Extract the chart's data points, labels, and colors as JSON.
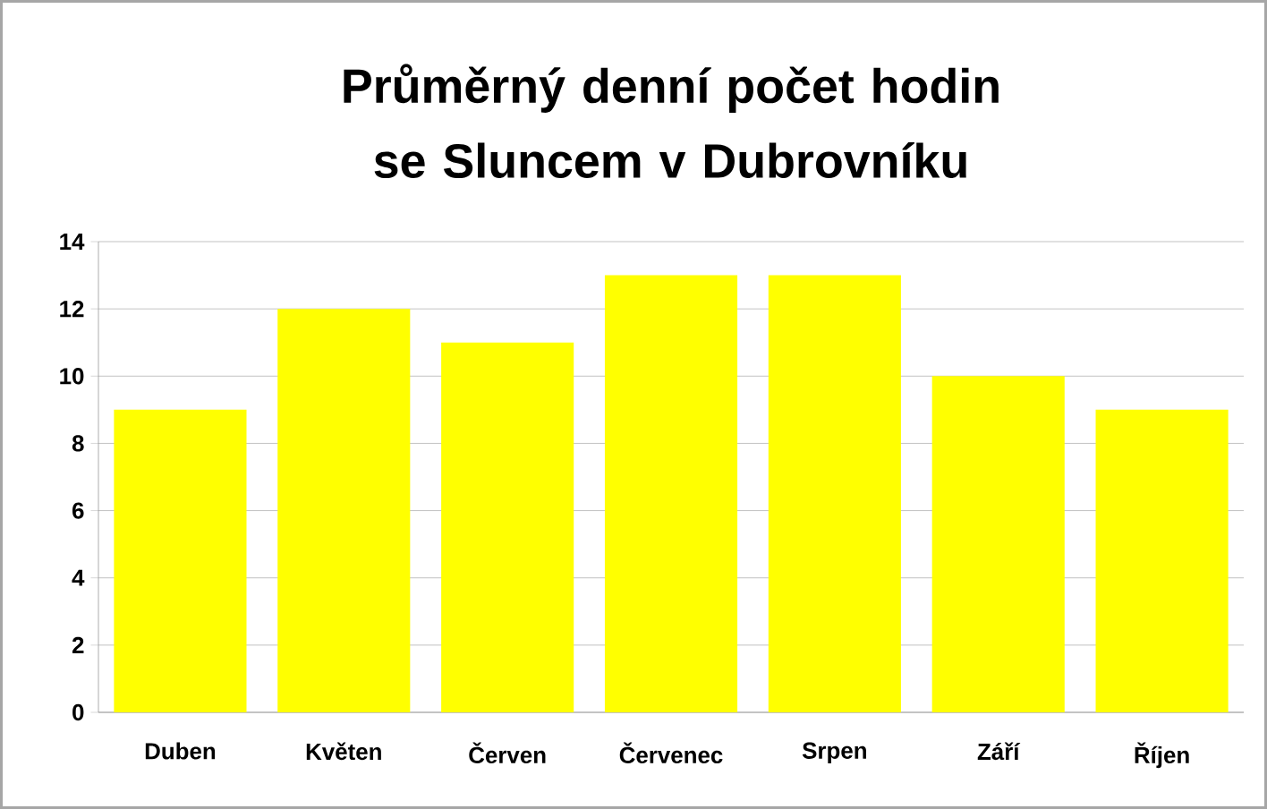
{
  "chart_data": {
    "type": "bar",
    "title": "Průměrný denní počet hodin se Sluncem v Dubrovníku",
    "categories": [
      "Duben",
      "Květen",
      "Červen",
      "Červenec",
      "Srpen",
      "Září",
      "Říjen"
    ],
    "values": [
      9,
      12,
      11,
      13,
      13,
      10,
      9
    ],
    "color": "#ffff00",
    "ylim": [
      0,
      14
    ],
    "yticks": [
      0,
      2,
      4,
      6,
      8,
      10,
      12,
      14
    ],
    "grid": "y"
  }
}
